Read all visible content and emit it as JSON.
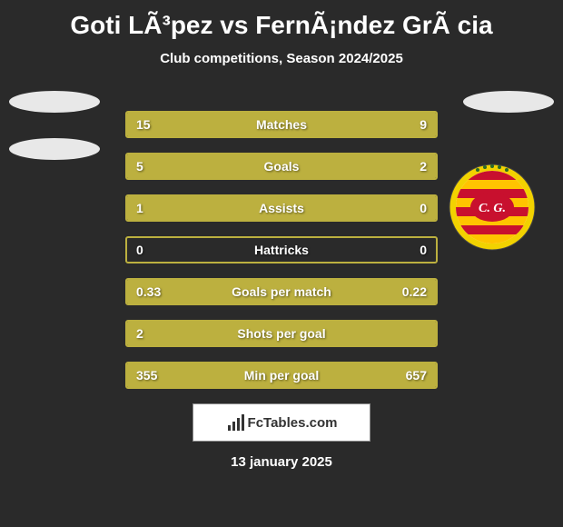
{
  "title": "Goti LÃ³pez vs FernÃ¡ndez GrÃ cia",
  "subtitle": "Club competitions, Season 2024/2025",
  "colors": {
    "background": "#2a2a2a",
    "bar_fill": "#bcb03f",
    "bar_border": "#bcb03f",
    "text": "#ffffff",
    "silhouette": "#e8e8e8"
  },
  "stats": [
    {
      "label": "Matches",
      "left_val": "15",
      "right_val": "9",
      "left_pct": 62.5,
      "right_pct": 37.5
    },
    {
      "label": "Goals",
      "left_val": "5",
      "right_val": "2",
      "left_pct": 71.4,
      "right_pct": 28.6
    },
    {
      "label": "Assists",
      "left_val": "1",
      "right_val": "0",
      "left_pct": 100,
      "right_pct": 0
    },
    {
      "label": "Hattricks",
      "left_val": "0",
      "right_val": "0",
      "left_pct": 0,
      "right_pct": 0
    },
    {
      "label": "Goals per match",
      "left_val": "0.33",
      "right_val": "0.22",
      "left_pct": 60,
      "right_pct": 40
    },
    {
      "label": "Shots per goal",
      "left_val": "2",
      "right_val": "",
      "left_pct": 100,
      "right_pct": 0
    },
    {
      "label": "Min per goal",
      "left_val": "355",
      "right_val": "657",
      "left_pct": 35,
      "right_pct": 65
    }
  ],
  "footer": {
    "brand": "FcTables.com"
  },
  "date": "13 january 2025",
  "badge": {
    "colors": {
      "outer": "#f2d200",
      "stripe1": "#c8102e",
      "stripe2": "#ffc400",
      "initials_bg": "#c8102e",
      "initials": "C. G."
    }
  }
}
